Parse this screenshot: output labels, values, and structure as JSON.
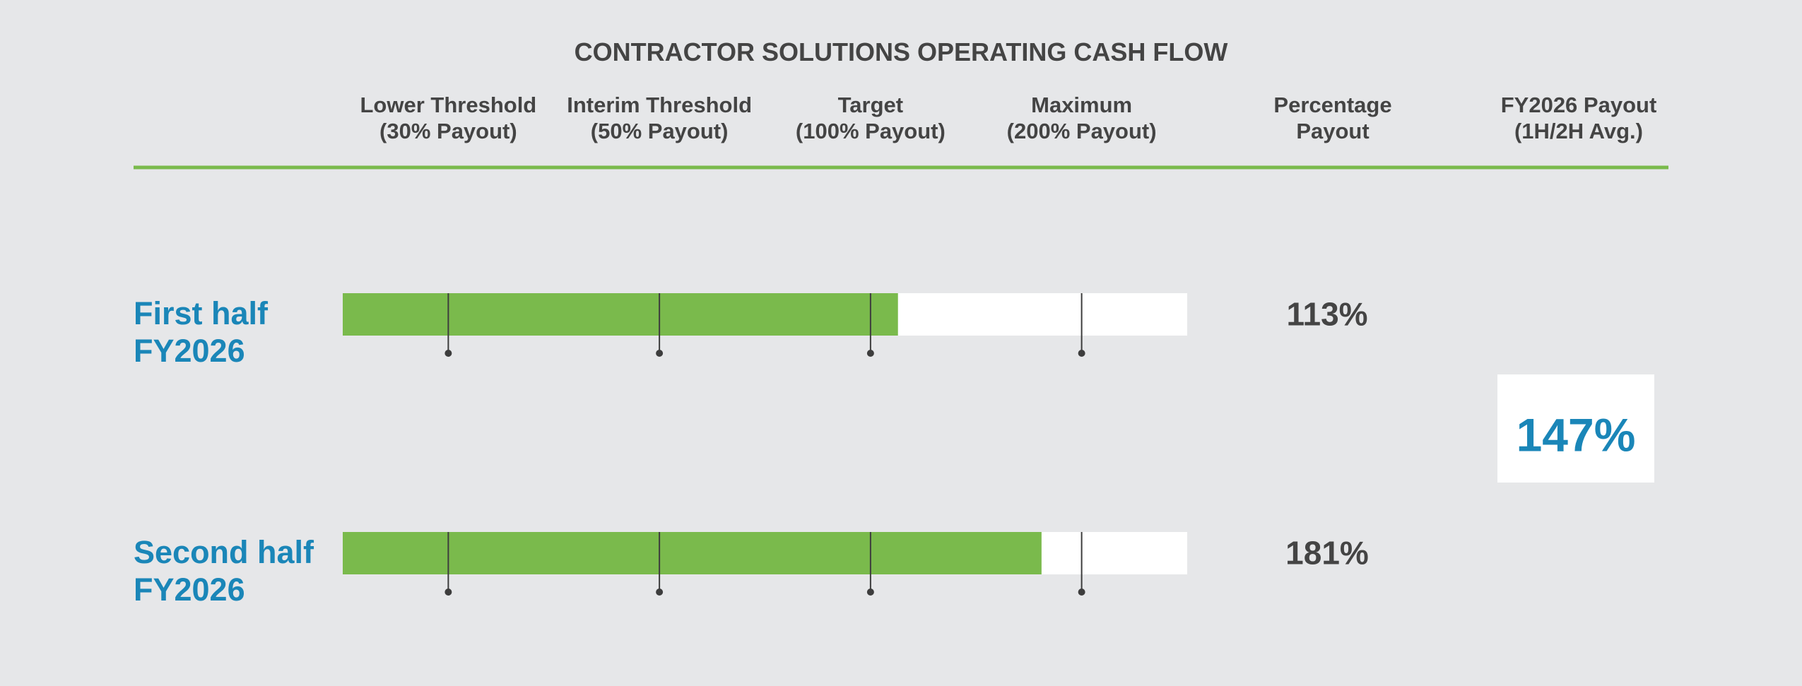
{
  "chart_data": {
    "type": "bullet",
    "title": "CONTRACTOR SOLUTIONS OPERATING CASH FLOW",
    "value_header": "Percentage\nPayout",
    "summary_header": "FY2026 Payout\n(1H/2H Avg.)",
    "categories": [
      "First half\nFY2026",
      "Second half\nFY2026"
    ],
    "values": [
      113,
      181
    ],
    "value_labels": [
      "113%",
      "181%"
    ],
    "summary": {
      "value": 147,
      "label": "147%"
    },
    "color": "#7aba4c",
    "xlim": [
      20,
      250
    ],
    "xticks": [
      {
        "value": 30,
        "label": "Lower Threshold\n(30% Payout)"
      },
      {
        "value": 50,
        "label": "Interim Threshold\n(50% Payout)"
      },
      {
        "value": 100,
        "label": "Target\n(100% Payout)"
      },
      {
        "value": 200,
        "label": "Maximum\n(200% Payout)"
      }
    ]
  }
}
